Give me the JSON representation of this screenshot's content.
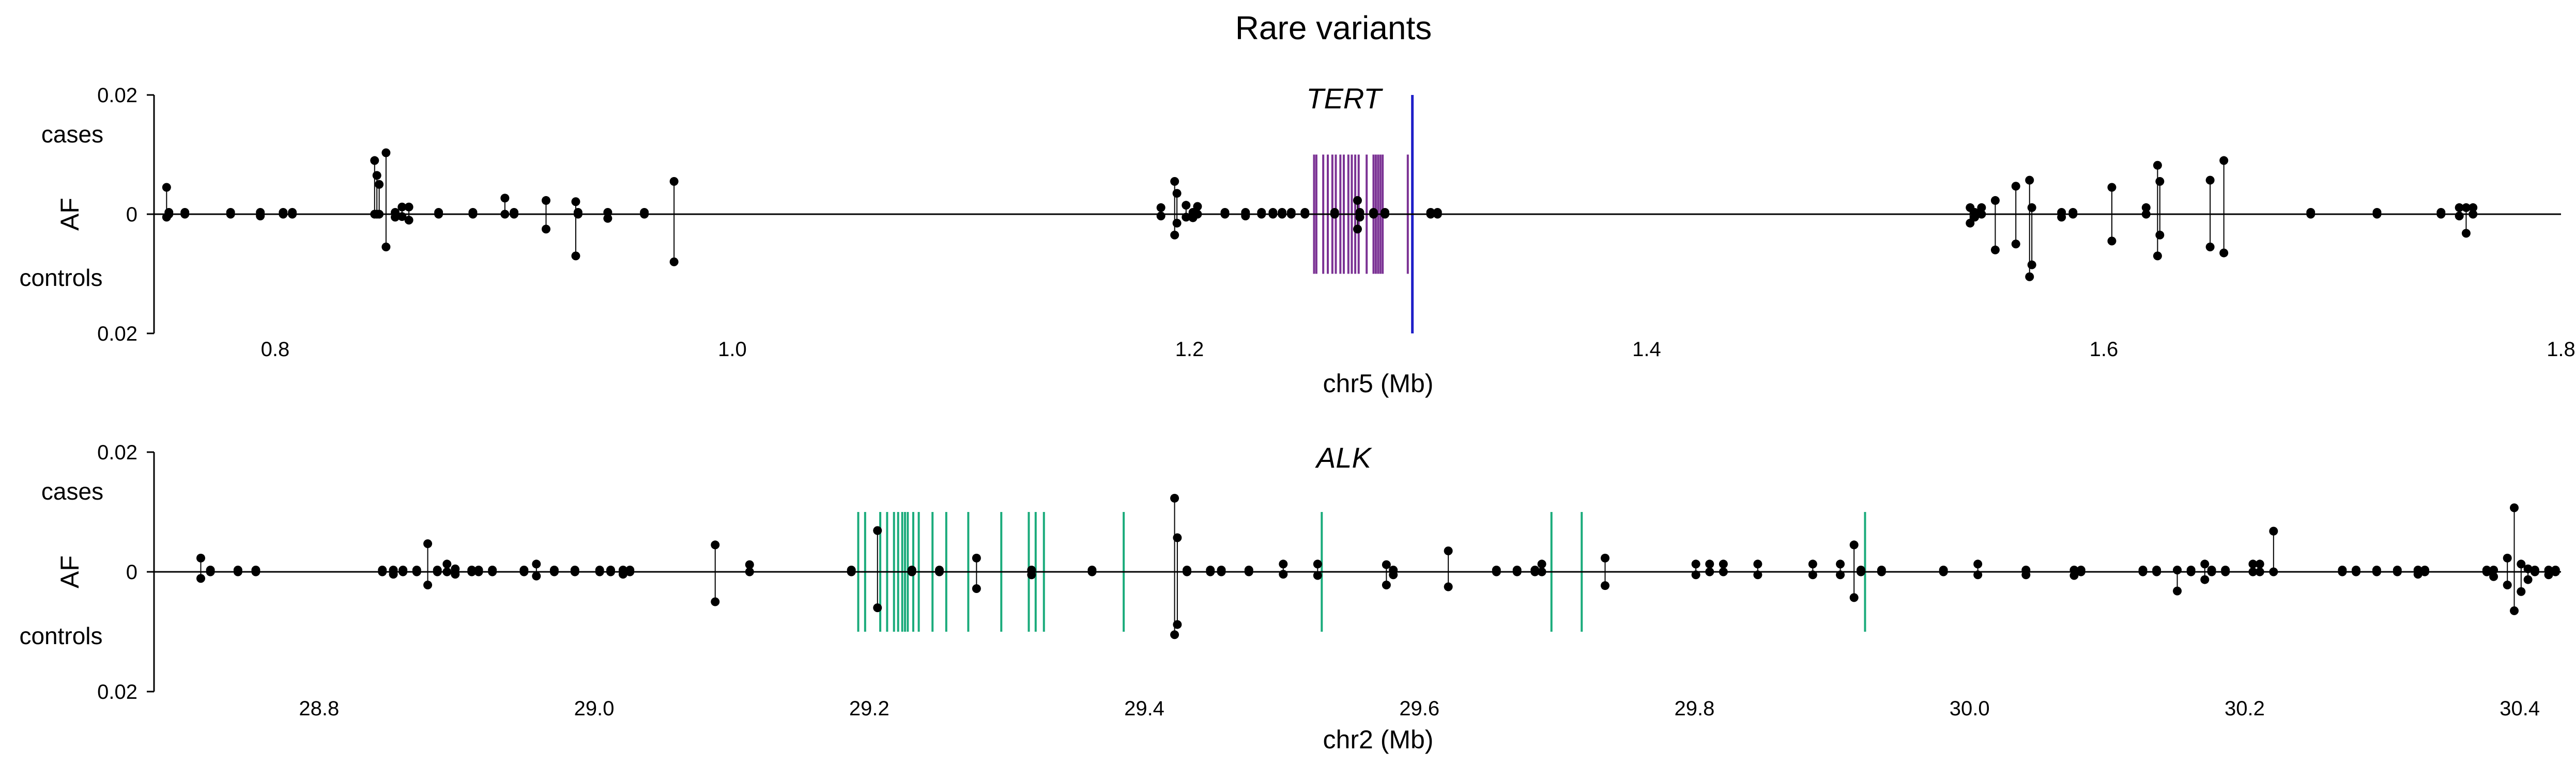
{
  "title": "Rare variants",
  "chart_data": [
    {
      "type": "scatter",
      "gene": "TERT",
      "xlabel": "chr5 (Mb)",
      "ylabel": "AF",
      "label_cases": "cases",
      "label_controls": "controls",
      "xlim": [
        0.747,
        1.8
      ],
      "ylim": [
        -0.02,
        0.02
      ],
      "xticks": [
        "0.8",
        "1.0",
        "1.2",
        "1.4",
        "1.6",
        "1.8"
      ],
      "ytick_top": "0.02",
      "ytick_mid": "0",
      "ytick_bottom": "0.02",
      "gene_color": "#7b3294",
      "gene_tick_height": 0.01,
      "gene_exons": [
        1.2545,
        1.2555,
        1.2585,
        1.2605,
        1.2625,
        1.264,
        1.266,
        1.2675,
        1.2695,
        1.271,
        1.2725,
        1.274,
        1.2775,
        1.2805,
        1.2815,
        1.2825,
        1.2835,
        1.2845,
        1.2955
      ],
      "highlight_color": "#1f1fc8",
      "highlight_x": 1.2975,
      "variants": [
        [
          0.7525,
          0.0045,
          -0.0005
        ],
        [
          0.7535,
          0.0003,
          0
        ],
        [
          0.7605,
          0.0003,
          0
        ],
        [
          0.7805,
          0.0003,
          0
        ],
        [
          0.7935,
          0.0003,
          -0.0003
        ],
        [
          0.8035,
          0.0003,
          0
        ],
        [
          0.8075,
          0.0003,
          0
        ],
        [
          0.8435,
          0.009,
          0
        ],
        [
          0.8445,
          0.0065,
          0
        ],
        [
          0.8455,
          0.005,
          0
        ],
        [
          0.8485,
          0.0103,
          -0.0055
        ],
        [
          0.8525,
          0.0003,
          -0.0005
        ],
        [
          0.8555,
          0.0012,
          -0.0004
        ],
        [
          0.8585,
          0.0012,
          -0.001
        ],
        [
          0.8715,
          0.0003,
          0
        ],
        [
          0.8865,
          0.0003,
          0
        ],
        [
          0.9005,
          0.0027,
          0
        ],
        [
          0.9045,
          0.0003,
          0
        ],
        [
          0.9185,
          0.0023,
          -0.0025
        ],
        [
          0.9315,
          0.0021,
          -0.007
        ],
        [
          0.9325,
          0.0003,
          0
        ],
        [
          0.9455,
          0.0003,
          -0.0007
        ],
        [
          0.9615,
          0.0003,
          0
        ],
        [
          0.9745,
          0.0055,
          -0.008
        ],
        [
          1.1875,
          0.0011,
          -0.0003
        ],
        [
          1.1935,
          0.0055,
          -0.0035
        ],
        [
          1.1945,
          0.0035,
          -0.0015
        ],
        [
          1.1985,
          0.0015,
          -0.0005
        ],
        [
          1.2015,
          0.0003,
          -0.0006
        ],
        [
          1.2035,
          0.0013,
          0
        ],
        [
          1.2155,
          0.0003,
          0
        ],
        [
          1.2245,
          0.0003,
          -0.0003
        ],
        [
          1.2315,
          0.0003,
          0
        ],
        [
          1.2365,
          0.0003,
          0
        ],
        [
          1.2405,
          0.0003,
          0
        ],
        [
          1.2445,
          0.0003,
          0
        ],
        [
          1.2505,
          0.0003,
          0
        ],
        [
          1.2635,
          0.0003,
          0
        ],
        [
          1.2735,
          0.0023,
          -0.0025
        ],
        [
          1.2745,
          0.0003,
          -0.0005
        ],
        [
          1.2805,
          0.0003,
          0
        ],
        [
          1.2855,
          0.0003,
          0
        ],
        [
          1.3055,
          0.0003,
          0
        ],
        [
          1.3085,
          0.0003,
          0
        ],
        [
          1.5415,
          0.0011,
          -0.0015
        ],
        [
          1.5435,
          0.0003,
          -0.0005
        ],
        [
          1.5465,
          0.0011,
          0
        ],
        [
          1.5525,
          0.0023,
          -0.006
        ],
        [
          1.5615,
          0.0047,
          -0.005
        ],
        [
          1.5675,
          0.0057,
          -0.0105
        ],
        [
          1.5685,
          0.0011,
          -0.0085
        ],
        [
          1.5815,
          0.0003,
          -0.0005
        ],
        [
          1.5865,
          0.0003,
          0
        ],
        [
          1.6035,
          0.0045,
          -0.0045
        ],
        [
          1.6185,
          0.0011,
          0
        ],
        [
          1.6235,
          0.0082,
          -0.007
        ],
        [
          1.6245,
          0.0055,
          -0.0035
        ],
        [
          1.6465,
          0.0057,
          -0.0055
        ],
        [
          1.6525,
          0.009,
          -0.0065
        ],
        [
          1.6905,
          0.0003,
          0
        ],
        [
          1.7195,
          0.0003,
          0
        ],
        [
          1.7475,
          0.0003,
          0
        ],
        [
          1.7555,
          0.0011,
          -0.0003
        ],
        [
          1.7585,
          0.0011,
          -0.0032
        ],
        [
          1.7615,
          0.0011,
          0
        ]
      ]
    },
    {
      "type": "scatter",
      "gene": "ALK",
      "xlabel": "chr2 (Mb)",
      "ylabel": "AF",
      "label_cases": "cases",
      "label_controls": "controls",
      "xlim": [
        28.68,
        30.43
      ],
      "ylim": [
        -0.02,
        0.02
      ],
      "xticks": [
        "28.8",
        "29.0",
        "29.2",
        "29.4",
        "29.6",
        "29.8",
        "30.0",
        "30.2",
        "30.4"
      ],
      "ytick_top": "0.02",
      "ytick_mid": "0",
      "ytick_bottom": "0.02",
      "gene_color": "#1aab7b",
      "gene_tick_height": 0.01,
      "gene_exons": [
        29.192,
        29.197,
        29.208,
        29.213,
        29.218,
        29.221,
        29.224,
        29.226,
        29.228,
        29.232,
        29.236,
        29.246,
        29.256,
        29.272,
        29.296,
        29.316,
        29.321,
        29.327,
        29.385,
        29.529,
        29.696,
        29.718,
        29.924
      ],
      "variants": [
        [
          28.714,
          0.0023,
          -0.0011
        ],
        [
          28.721,
          0.0003,
          0
        ],
        [
          28.741,
          0.0003,
          0
        ],
        [
          28.754,
          0.0003,
          0
        ],
        [
          28.846,
          0.0003,
          0
        ],
        [
          28.854,
          0.0003,
          -0.0004
        ],
        [
          28.861,
          0.0003,
          0
        ],
        [
          28.871,
          0.0003,
          0
        ],
        [
          28.879,
          0.0047,
          -0.0022
        ],
        [
          28.886,
          0.0003,
          0
        ],
        [
          28.893,
          0.0013,
          0
        ],
        [
          28.899,
          0.0005,
          -0.0004
        ],
        [
          28.911,
          0.0003,
          0
        ],
        [
          28.916,
          0.0003,
          0
        ],
        [
          28.926,
          0.0003,
          0
        ],
        [
          28.949,
          0.0003,
          0
        ],
        [
          28.958,
          0.0013,
          -0.0007
        ],
        [
          28.971,
          0.0003,
          0
        ],
        [
          28.986,
          0.0003,
          0
        ],
        [
          29.004,
          0.0003,
          0
        ],
        [
          29.012,
          0.0003,
          0
        ],
        [
          29.021,
          0.0003,
          -0.0004
        ],
        [
          29.026,
          0.0003,
          0
        ],
        [
          29.088,
          0.0045,
          -0.005
        ],
        [
          29.113,
          0.0012,
          0
        ],
        [
          29.187,
          0.0003,
          0
        ],
        [
          29.206,
          0.0069,
          -0.006
        ],
        [
          29.231,
          0.0003,
          0
        ],
        [
          29.251,
          0.0003,
          0
        ],
        [
          29.278,
          0.0023,
          -0.0028
        ],
        [
          29.318,
          0.0003,
          -0.0005
        ],
        [
          29.362,
          0.0003,
          0
        ],
        [
          29.422,
          0.0123,
          -0.0105
        ],
        [
          29.424,
          0.0057,
          -0.0088
        ],
        [
          29.431,
          0.0003,
          0
        ],
        [
          29.448,
          0.0003,
          0
        ],
        [
          29.456,
          0.0003,
          0
        ],
        [
          29.476,
          0.0003,
          0
        ],
        [
          29.501,
          0.0013,
          -0.0004
        ],
        [
          29.526,
          0.0013,
          -0.0006
        ],
        [
          29.576,
          0.0012,
          -0.0022
        ],
        [
          29.581,
          0.0003,
          -0.0005
        ],
        [
          29.621,
          0.0035,
          -0.0025
        ],
        [
          29.656,
          0.0003,
          0
        ],
        [
          29.671,
          0.0003,
          0
        ],
        [
          29.684,
          0.0003,
          0
        ],
        [
          29.689,
          0.0013,
          0
        ],
        [
          29.735,
          0.0023,
          -0.0023
        ],
        [
          29.801,
          0.0013,
          -0.0005
        ],
        [
          29.811,
          0.0013,
          0
        ],
        [
          29.821,
          0.0013,
          0
        ],
        [
          29.846,
          0.0013,
          -0.0005
        ],
        [
          29.886,
          0.0013,
          -0.0005
        ],
        [
          29.906,
          0.0013,
          -0.0005
        ],
        [
          29.916,
          0.0045,
          -0.0043
        ],
        [
          29.921,
          0.0003,
          0
        ],
        [
          29.936,
          0.0003,
          0
        ],
        [
          29.981,
          0.0003,
          0
        ],
        [
          30.006,
          0.0013,
          -0.0005
        ],
        [
          30.041,
          0.0003,
          -0.0005
        ],
        [
          30.076,
          0.0003,
          -0.0006
        ],
        [
          30.081,
          0.0003,
          0
        ],
        [
          30.126,
          0.0003,
          0
        ],
        [
          30.136,
          0.0003,
          0
        ],
        [
          30.151,
          0.0003,
          -0.0032
        ],
        [
          30.161,
          0.0003,
          0
        ],
        [
          30.171,
          0.0013,
          -0.0013
        ],
        [
          30.176,
          0.0003,
          0
        ],
        [
          30.186,
          0.0003,
          0
        ],
        [
          30.206,
          0.0013,
          0
        ],
        [
          30.211,
          0.0013,
          0
        ],
        [
          30.221,
          0.0068,
          0
        ],
        [
          30.271,
          0.0003,
          0
        ],
        [
          30.281,
          0.0003,
          0
        ],
        [
          30.296,
          0.0003,
          0
        ],
        [
          30.311,
          0.0003,
          0
        ],
        [
          30.326,
          0.0003,
          -0.0004
        ],
        [
          30.331,
          0.0003,
          0
        ],
        [
          30.376,
          0.0003,
          0
        ],
        [
          30.381,
          0.0003,
          -0.0008
        ],
        [
          30.391,
          0.0023,
          -0.0022
        ],
        [
          30.396,
          0.0107,
          -0.0065
        ],
        [
          30.401,
          0.0013,
          -0.0033
        ],
        [
          30.406,
          0.0005,
          -0.0013
        ],
        [
          30.411,
          0.0003,
          0
        ],
        [
          30.421,
          0.0003,
          -0.0005
        ],
        [
          30.426,
          0.0003,
          0
        ]
      ]
    }
  ]
}
